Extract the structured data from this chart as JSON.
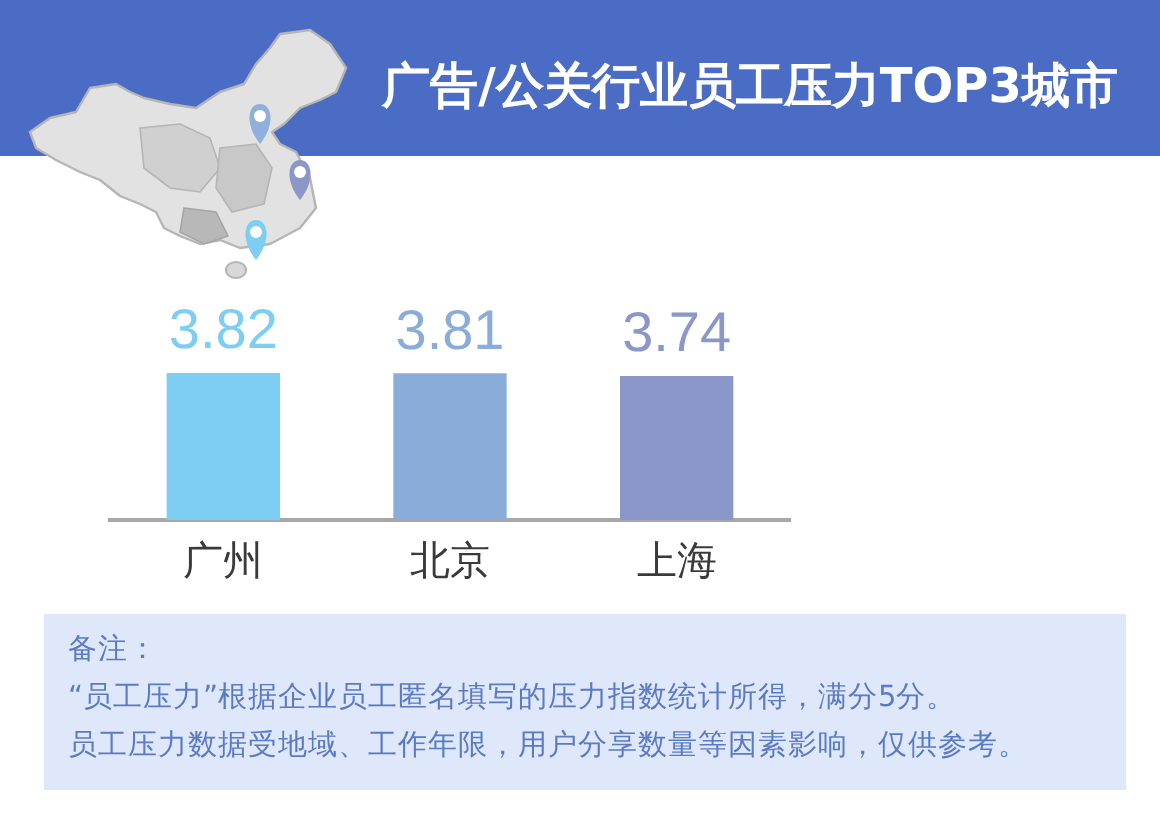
{
  "chart_data": {
    "type": "bar",
    "title": "广告/公关行业员工压力TOP3城市",
    "categories": [
      "广州",
      "北京",
      "上海"
    ],
    "values": [
      3.82,
      3.81,
      3.74
    ],
    "colors": [
      "#7ecef4",
      "#89acd9",
      "#8b96c9"
    ],
    "tick_labels": "x",
    "data_labels": true,
    "annotations": [
      "备注：",
      "“员工压力”根据企业员工匿名填写的压力指数统计所得，满分5分。",
      "员工压力数据受地域、工作年限，用户分享数量等因素影响，仅供参考。"
    ]
  }
}
